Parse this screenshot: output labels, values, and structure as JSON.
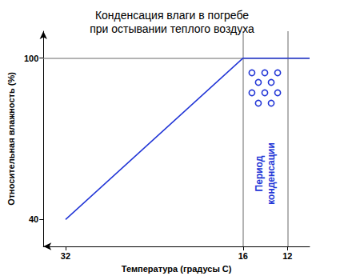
{
  "chart_data": {
    "type": "line",
    "title": "Конденсация влаги в погребе\nпри остывании теплого воздуха",
    "x_label": "Температура (градусы С)",
    "y_label": "Относительная влажность (%)",
    "x": [
      32,
      16,
      10
    ],
    "values": [
      40,
      100,
      100
    ],
    "color": "#2236d6",
    "xlim": [
      34,
      10
    ],
    "xticks": [
      32,
      16,
      12
    ],
    "ylim": [
      30,
      110
    ],
    "yticks": [
      40,
      100
    ],
    "reference_lines": {
      "x": [
        16,
        12
      ],
      "y": [
        100
      ]
    },
    "annotations": [
      {
        "text": "Период\nконденсации",
        "x_range": [
          16,
          12
        ]
      }
    ]
  }
}
